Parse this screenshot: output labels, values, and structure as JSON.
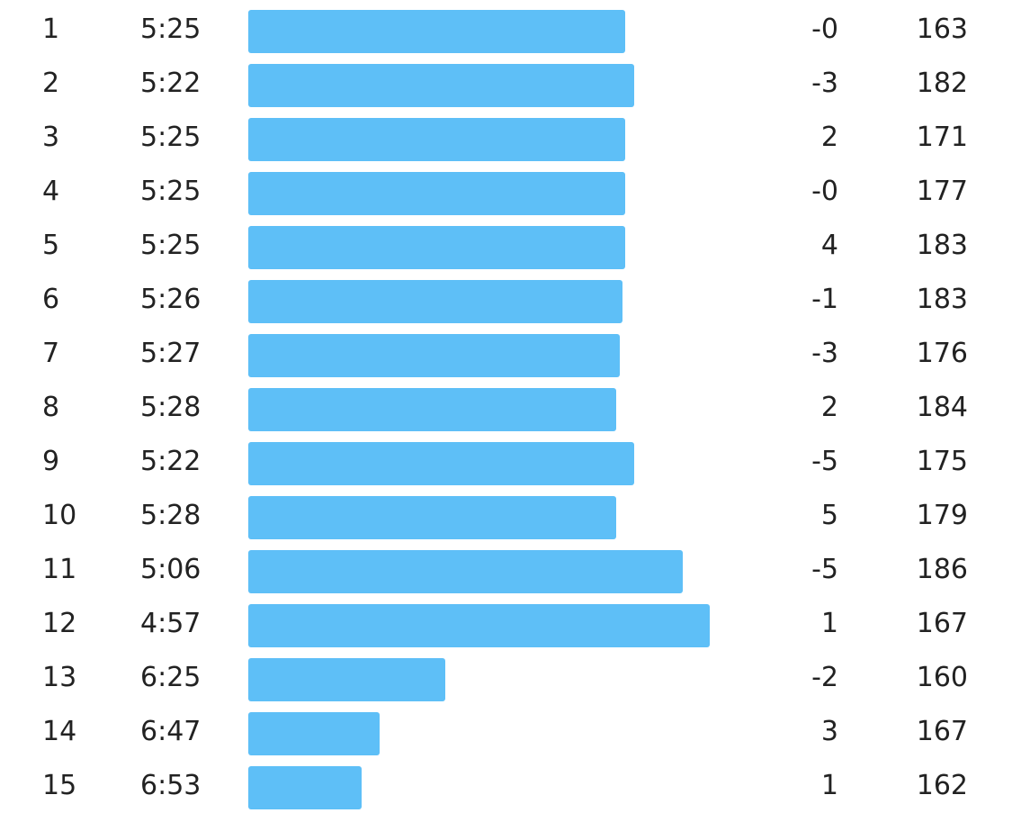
{
  "colors": {
    "bar": "#5ebff7",
    "text": "#222222",
    "background": "#ffffff"
  },
  "splits": [
    {
      "km": "1",
      "pace": "5:25",
      "elevation": "-0",
      "heart_rate": "163",
      "pace_seconds": 325
    },
    {
      "km": "2",
      "pace": "5:22",
      "elevation": "-3",
      "heart_rate": "182",
      "pace_seconds": 322
    },
    {
      "km": "3",
      "pace": "5:25",
      "elevation": "2",
      "heart_rate": "171",
      "pace_seconds": 325
    },
    {
      "km": "4",
      "pace": "5:25",
      "elevation": "-0",
      "heart_rate": "177",
      "pace_seconds": 325
    },
    {
      "km": "5",
      "pace": "5:25",
      "elevation": "4",
      "heart_rate": "183",
      "pace_seconds": 325
    },
    {
      "km": "6",
      "pace": "5:26",
      "elevation": "-1",
      "heart_rate": "183",
      "pace_seconds": 326
    },
    {
      "km": "7",
      "pace": "5:27",
      "elevation": "-3",
      "heart_rate": "176",
      "pace_seconds": 327
    },
    {
      "km": "8",
      "pace": "5:28",
      "elevation": "2",
      "heart_rate": "184",
      "pace_seconds": 328
    },
    {
      "km": "9",
      "pace": "5:22",
      "elevation": "-5",
      "heart_rate": "175",
      "pace_seconds": 322
    },
    {
      "km": "10",
      "pace": "5:28",
      "elevation": "5",
      "heart_rate": "179",
      "pace_seconds": 328
    },
    {
      "km": "11",
      "pace": "5:06",
      "elevation": "-5",
      "heart_rate": "186",
      "pace_seconds": 306
    },
    {
      "km": "12",
      "pace": "4:57",
      "elevation": "1",
      "heart_rate": "167",
      "pace_seconds": 297
    },
    {
      "km": "13",
      "pace": "6:25",
      "elevation": "-2",
      "heart_rate": "160",
      "pace_seconds": 385
    },
    {
      "km": "14",
      "pace": "6:47",
      "elevation": "3",
      "heart_rate": "167",
      "pace_seconds": 407
    },
    {
      "km": "15",
      "pace": "6:53",
      "elevation": "1",
      "heart_rate": "162",
      "pace_seconds": 413
    }
  ]
}
